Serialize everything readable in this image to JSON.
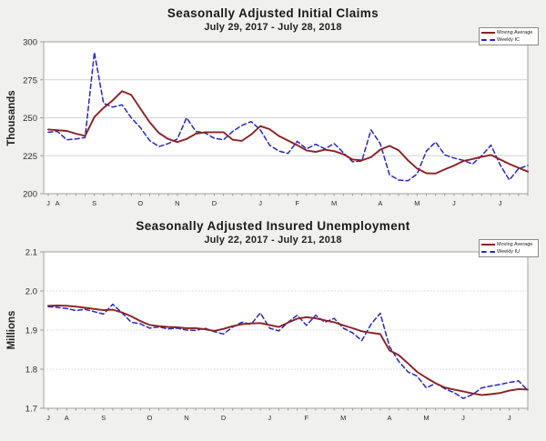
{
  "page": {
    "background_color": "#f0f0ee",
    "plot_background_color": "#ffffff"
  },
  "colors": {
    "moving_average": "#8b2024",
    "weekly": "#2727bd",
    "grid": "#d4d4d4",
    "axis": "#a0a0a0"
  },
  "chart_data": [
    {
      "type": "line",
      "title": "Seasonally Adjusted Initial Claims",
      "subtitle": "July 29, 2017 - July 28, 2018",
      "y_axis_label": "Thousands",
      "ylim": [
        200,
        300
      ],
      "y_ticks": [
        {
          "v": 300,
          "label": "300"
        },
        {
          "v": 275,
          "label": "275"
        },
        {
          "v": 250,
          "label": "250"
        },
        {
          "v": 225,
          "label": "225"
        },
        {
          "v": 200,
          "label": "200"
        }
      ],
      "x_month_labels": [
        "J",
        "A",
        "S",
        "O",
        "N",
        "D",
        "J",
        "F",
        "M",
        "A",
        "M",
        "J",
        "J"
      ],
      "month_week_indices": [
        0,
        1,
        5,
        10,
        14,
        18,
        23,
        27,
        31,
        36,
        40,
        44,
        49
      ],
      "week_count": 53,
      "grid_style": "solid",
      "legend_position": "top-right",
      "series": [
        {
          "name": "Moving Average",
          "color": "#8b2024",
          "style": "solid",
          "values": [
            242.3,
            241.8,
            241.3,
            239.5,
            238,
            250.5,
            256.5,
            261.5,
            267.5,
            265,
            256,
            247,
            240,
            236,
            234,
            236,
            239.5,
            240.5,
            240.5,
            240.5,
            235.5,
            234.8,
            239,
            244.5,
            242.5,
            238,
            235,
            232,
            228.5,
            227.5,
            229,
            228,
            226,
            222.5,
            222,
            224,
            229,
            231.5,
            228.5,
            222,
            216.5,
            213.5,
            213.3,
            216,
            218.5,
            221.5,
            222.8,
            224.3,
            225.5,
            222.5,
            219.5,
            217,
            214.5
          ]
        },
        {
          "name": "Weekly IC",
          "color": "#2727bd",
          "style": "dashed",
          "values": [
            240.5,
            241,
            235.5,
            236,
            237,
            293,
            259.5,
            257,
            258.5,
            250,
            243.5,
            235,
            231,
            233,
            236,
            250,
            241,
            240,
            236.5,
            235.5,
            241,
            245,
            247.5,
            242,
            232,
            228,
            226.5,
            234.5,
            229.5,
            232.5,
            229.5,
            233,
            227,
            221,
            221.5,
            242,
            233,
            212.5,
            209,
            208.5,
            213,
            228,
            234,
            225.5,
            223.5,
            222,
            219.5,
            225,
            232,
            219,
            209,
            216.5,
            218.5
          ]
        }
      ]
    },
    {
      "type": "line",
      "title": "Seasonally Adjusted Insured Unemployment",
      "subtitle": "July 22, 2017 - July 21, 2018",
      "y_axis_label": "Millions",
      "ylim": [
        1.7,
        2.1
      ],
      "y_ticks": [
        {
          "v": 2.1,
          "label": "2.1"
        },
        {
          "v": 2.0,
          "label": "2.0"
        },
        {
          "v": 1.9,
          "label": "1.9"
        },
        {
          "v": 1.8,
          "label": "1.8"
        },
        {
          "v": 1.7,
          "label": "1.7"
        }
      ],
      "x_month_labels": [
        "J",
        "A",
        "S",
        "O",
        "N",
        "D",
        "J",
        "F",
        "M",
        "A",
        "M",
        "J",
        "J"
      ],
      "month_week_indices": [
        0,
        2,
        6,
        11,
        15,
        19,
        24,
        28,
        32,
        37,
        41,
        45,
        50
      ],
      "week_count": 53,
      "grid_style": "dotted",
      "legend_position": "top-right",
      "series": [
        {
          "name": "Moving Average",
          "color": "#8b2024",
          "style": "solid",
          "values": [
            1.962,
            1.963,
            1.962,
            1.96,
            1.957,
            1.954,
            1.951,
            1.952,
            1.945,
            1.935,
            1.923,
            1.913,
            1.91,
            1.908,
            1.907,
            1.905,
            1.905,
            1.902,
            1.898,
            1.903,
            1.91,
            1.915,
            1.917,
            1.918,
            1.913,
            1.908,
            1.919,
            1.929,
            1.933,
            1.93,
            1.925,
            1.92,
            1.912,
            1.905,
            1.897,
            1.893,
            1.89,
            1.848,
            1.836,
            1.815,
            1.793,
            1.778,
            1.764,
            1.753,
            1.748,
            1.743,
            1.738,
            1.734,
            1.736,
            1.739,
            1.745,
            1.749,
            1.748
          ]
        },
        {
          "name": "Weekly IU",
          "color": "#2727bd",
          "style": "dashed",
          "values": [
            1.96,
            1.958,
            1.955,
            1.95,
            1.953,
            1.947,
            1.941,
            1.966,
            1.944,
            1.92,
            1.916,
            1.905,
            1.908,
            1.903,
            1.905,
            1.9,
            1.899,
            1.905,
            1.896,
            1.89,
            1.908,
            1.92,
            1.915,
            1.944,
            1.905,
            1.898,
            1.92,
            1.938,
            1.912,
            1.938,
            1.92,
            1.93,
            1.905,
            1.893,
            1.873,
            1.915,
            1.943,
            1.858,
            1.82,
            1.793,
            1.782,
            1.752,
            1.764,
            1.75,
            1.74,
            1.725,
            1.735,
            1.752,
            1.757,
            1.761,
            1.766,
            1.77,
            1.745
          ]
        }
      ]
    }
  ]
}
